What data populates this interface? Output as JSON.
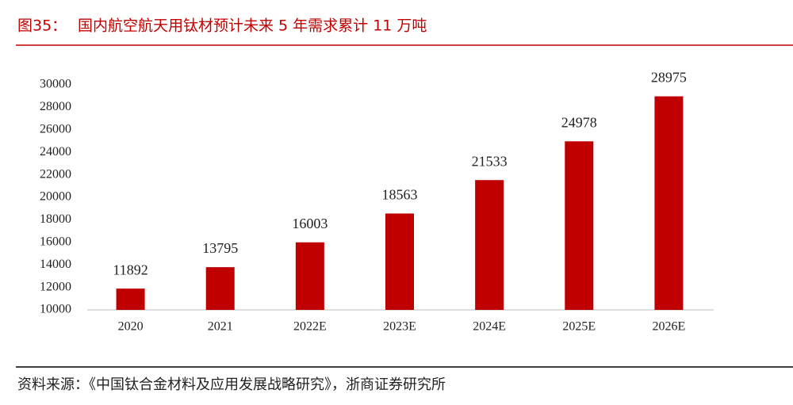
{
  "chart_data": {
    "type": "bar",
    "figure_label": "图35：",
    "title": "国内航空航天用钛材预计未来 5 年需求累计 11 万吨",
    "categories": [
      "2020",
      "2021",
      "2022E",
      "2023E",
      "2024E",
      "2025E",
      "2026E"
    ],
    "values": [
      11892,
      13795,
      16003,
      18563,
      21533,
      24978,
      28975
    ],
    "color": "#c00000",
    "ylim": [
      10000,
      30000
    ],
    "yticks": [
      10000,
      12000,
      14000,
      16000,
      18000,
      20000,
      22000,
      24000,
      26000,
      28000,
      30000
    ],
    "grid": false,
    "source": "资料来源：《中国钛合金材料及应用发展战略研究》，浙商证券研究所"
  }
}
